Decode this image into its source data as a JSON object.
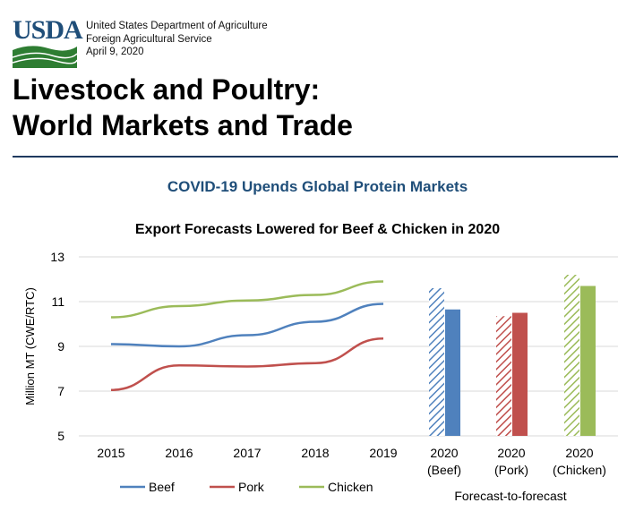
{
  "header": {
    "logo_text": "USDA",
    "agency_lines": [
      "United States Department of Agriculture",
      "Foreign Agricultural Service",
      "April 9, 2020"
    ],
    "title_lines": [
      "Livestock and Poultry:",
      "World Markets and Trade"
    ]
  },
  "subtitle": "COVID-19 Upends Global Protein Markets",
  "chart_data": {
    "type": "line",
    "title": "Export Forecasts Lowered for Beef & Chicken in 2020",
    "ylabel": "Million MT (CWE/RTC)",
    "ylim": [
      5,
      13
    ],
    "yticks": [
      5,
      7,
      9,
      11,
      13
    ],
    "grid": true,
    "x": [
      "2015",
      "2016",
      "2017",
      "2018",
      "2019"
    ],
    "series": [
      {
        "name": "Beef",
        "color": "#4f81bd",
        "values": [
          9.1,
          9.0,
          9.5,
          10.1,
          10.9
        ]
      },
      {
        "name": "Pork",
        "color": "#c0504d",
        "values": [
          7.05,
          8.15,
          8.1,
          8.25,
          9.35
        ]
      },
      {
        "name": "Chicken",
        "color": "#9bbb59",
        "values": [
          10.3,
          10.8,
          11.05,
          11.3,
          11.9
        ]
      }
    ],
    "forecast_bars": {
      "label": "Forecast-to-forecast",
      "groups": [
        {
          "label_lines": [
            "2020",
            "(Beef)"
          ],
          "color": "#4f81bd",
          "previous": 11.6,
          "current": 10.65
        },
        {
          "label_lines": [
            "2020",
            "(Pork)"
          ],
          "color": "#c0504d",
          "previous": 10.35,
          "current": 10.5
        },
        {
          "label_lines": [
            "2020",
            "(Chicken)"
          ],
          "color": "#9bbb59",
          "previous": 12.2,
          "current": 11.7
        }
      ]
    },
    "legend_position": "bottom-left"
  }
}
